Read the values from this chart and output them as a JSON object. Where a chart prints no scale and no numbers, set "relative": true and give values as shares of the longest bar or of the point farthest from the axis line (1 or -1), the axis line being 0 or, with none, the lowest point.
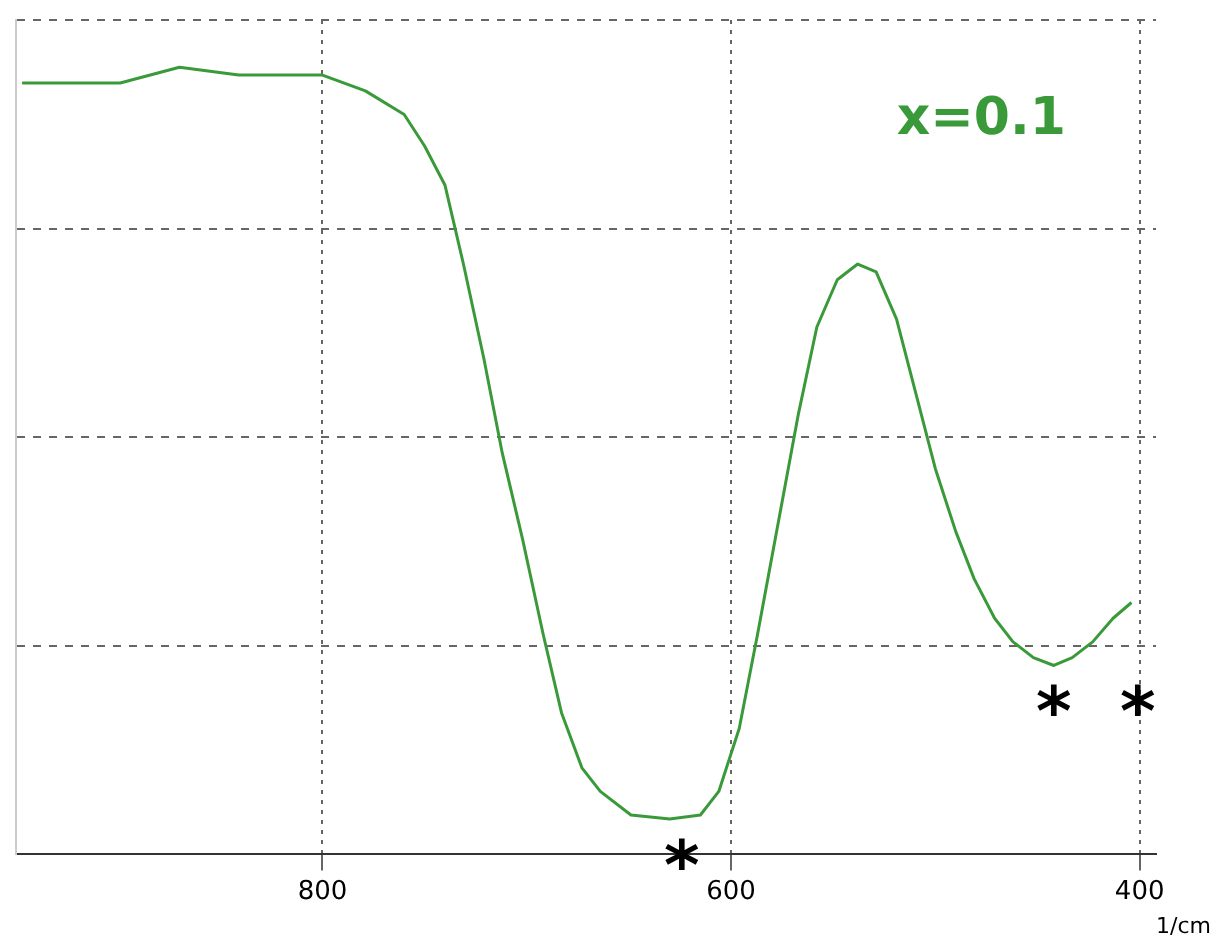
{
  "chart_data": {
    "type": "line",
    "relative": true,
    "xlabel": "1/cm",
    "xlim": [
      950,
      392
    ],
    "xticks": [
      800,
      600,
      400
    ],
    "grid": true,
    "marker": "none",
    "line_style": "solid",
    "x": [
      947,
      928,
      899,
      870,
      841,
      808,
      800,
      779,
      760,
      750,
      740,
      731,
      721,
      712,
      702,
      692,
      683,
      673,
      664,
      649,
      630,
      615,
      606,
      596,
      587,
      577,
      567,
      558,
      548,
      538,
      529,
      519,
      510,
      500,
      490,
      481,
      471,
      462,
      452,
      442,
      433,
      423,
      413,
      404
    ],
    "series": [
      {
        "name": "x=0.1",
        "color": "#3a9a3a",
        "values": [
          0.98,
          0.98,
          0.98,
          1.0,
          0.99,
          0.99,
          0.99,
          0.97,
          0.94,
          0.9,
          0.85,
          0.75,
          0.63,
          0.51,
          0.4,
          0.28,
          0.18,
          0.11,
          0.08,
          0.05,
          0.045,
          0.05,
          0.08,
          0.16,
          0.28,
          0.42,
          0.56,
          0.67,
          0.73,
          0.75,
          0.74,
          0.68,
          0.59,
          0.49,
          0.41,
          0.35,
          0.3,
          0.27,
          0.25,
          0.24,
          0.25,
          0.27,
          0.3,
          0.32
        ]
      }
    ],
    "annotations": [
      "*",
      "*",
      "*"
    ]
  }
}
